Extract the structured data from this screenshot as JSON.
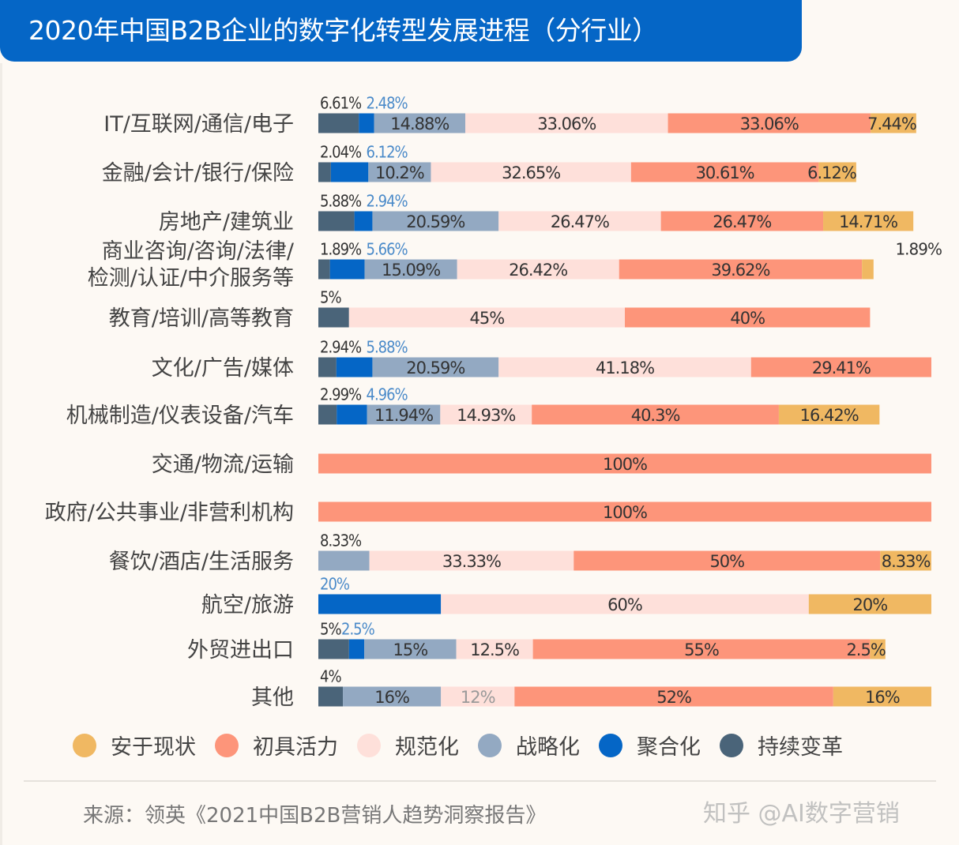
{
  "title": "2020年中国B2B企业的数字化转型发展进程（分行业）",
  "source": "来源：领英《2021中国B2B营销人趋势洞察报告》",
  "watermark": "知乎 @AI数字营销",
  "chart_data": {
    "type": "bar",
    "orientation": "horizontal-stacked-100",
    "title": "2020年中国B2B企业的数字化转型发展进程（分行业）",
    "series_order": [
      "持续变革",
      "聚合化",
      "战略化",
      "规范化",
      "初具活力",
      "安于现状"
    ],
    "legend": [
      {
        "name": "安于现状",
        "color": "#f0b862"
      },
      {
        "name": "初具活力",
        "color": "#fd957a"
      },
      {
        "name": "规范化",
        "color": "#fee0da"
      },
      {
        "name": "战略化",
        "color": "#93a9c2"
      },
      {
        "name": "聚合化",
        "color": "#0566c6"
      },
      {
        "name": "持续变革",
        "color": "#4a6479"
      }
    ],
    "legend_position": "bottom",
    "categories": [
      {
        "label": [
          "IT/互联网/通信/电子"
        ],
        "values": [
          6.61,
          2.48,
          14.88,
          33.06,
          33.06,
          7.44
        ],
        "labels": [
          "6.61%",
          "2.48%",
          "14.88%",
          "33.06%",
          "33.06%",
          "7.44%"
        ]
      },
      {
        "label": [
          "金融/会计/银行/保险"
        ],
        "values": [
          2.04,
          6.12,
          10.2,
          32.65,
          30.61,
          6.12
        ],
        "labels": [
          "2.04%",
          "6.12%",
          "10.2%",
          "32.65%",
          "30.61%",
          "6.12%"
        ]
      },
      {
        "label": [
          "房地产/建筑业"
        ],
        "values": [
          5.88,
          2.94,
          20.59,
          26.47,
          26.47,
          14.71
        ],
        "labels": [
          "5.88%",
          "2.94%",
          "20.59%",
          "26.47%",
          "26.47%",
          "14.71%"
        ]
      },
      {
        "label": [
          "商业咨询/咨询/法律/",
          "检测/认证/中介服务等"
        ],
        "values": [
          1.89,
          5.66,
          15.09,
          26.42,
          39.62,
          1.89
        ],
        "labels": [
          "1.89%",
          "5.66%",
          "15.09%",
          "26.42%",
          "39.62%",
          "1.89%"
        ]
      },
      {
        "label": [
          "教育/培训/高等教育"
        ],
        "values": [
          5,
          0,
          0,
          45,
          40,
          0
        ],
        "labels": [
          "5%",
          "",
          "",
          "45%",
          "40%",
          ""
        ]
      },
      {
        "label": [
          "文化/广告/媒体"
        ],
        "values": [
          2.94,
          5.88,
          20.59,
          41.18,
          29.41,
          0
        ],
        "labels": [
          "2.94%",
          "5.88%",
          "20.59%",
          "41.18%",
          "29.41%",
          ""
        ]
      },
      {
        "label": [
          "机械制造/仪表设备/汽车"
        ],
        "values": [
          2.99,
          4.96,
          11.94,
          14.93,
          40.3,
          16.42
        ],
        "labels": [
          "2.99%",
          "4.96%",
          "11.94%",
          "14.93%",
          "40.3%",
          "16.42%"
        ]
      },
      {
        "label": [
          "交通/物流/运输"
        ],
        "values": [
          0,
          0,
          0,
          0,
          100,
          0
        ],
        "labels": [
          "",
          "",
          "",
          "",
          "100%",
          ""
        ]
      },
      {
        "label": [
          "政府/公共事业/非营利机构"
        ],
        "values": [
          0,
          0,
          0,
          0,
          100,
          0
        ],
        "labels": [
          "",
          "",
          "",
          "",
          "100%",
          ""
        ]
      },
      {
        "label": [
          "餐饮/酒店/生活服务"
        ],
        "values": [
          0,
          0,
          8.33,
          33.33,
          50,
          8.33
        ],
        "labels": [
          "",
          "",
          "8.33%",
          "33.33%",
          "50%",
          "8.33%"
        ]
      },
      {
        "label": [
          "航空/旅游"
        ],
        "values": [
          0,
          20,
          0,
          60,
          0,
          20
        ],
        "labels": [
          "",
          "20%",
          "",
          "60%",
          "",
          "20%"
        ]
      },
      {
        "label": [
          "外贸进出口"
        ],
        "values": [
          5,
          2.5,
          15,
          12.5,
          55,
          2.5
        ],
        "labels": [
          "5%",
          "2.5%",
          "15%",
          "12.5%",
          "55%",
          "2.5%"
        ]
      },
      {
        "label": [
          "其他"
        ],
        "values": [
          4,
          0,
          16,
          12,
          52,
          16
        ],
        "labels": [
          "4%",
          "",
          "16%",
          "12%",
          "52%",
          "16%"
        ]
      }
    ],
    "xlim": [
      0,
      100
    ],
    "grid": false
  }
}
